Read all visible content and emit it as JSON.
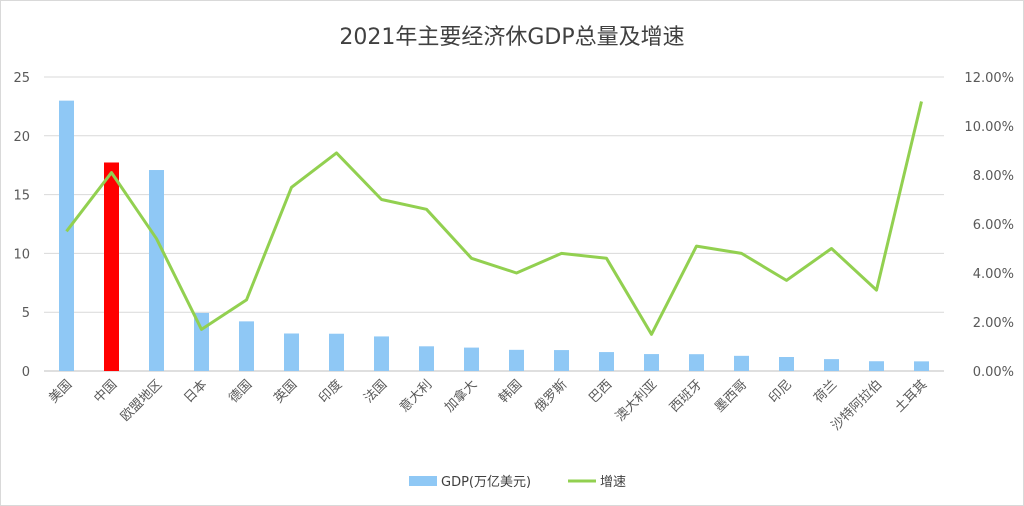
{
  "chart_data": {
    "type": "bar+line",
    "title": "2021年主要经济休GDP总量及增速",
    "categories": [
      "美国",
      "中国",
      "欧盟地区",
      "日本",
      "德国",
      "英国",
      "印度",
      "法国",
      "意大利",
      "加拿大",
      "韩国",
      "俄罗斯",
      "巴西",
      "澳大利亚",
      "西班牙",
      "墨西哥",
      "印尼",
      "荷兰",
      "沙特阿拉伯",
      "土耳其"
    ],
    "series": [
      {
        "name": "GDP(万亿美元)",
        "type": "bar",
        "axis": "left",
        "values": [
          22.99,
          17.73,
          17.09,
          4.94,
          4.22,
          3.19,
          3.17,
          2.94,
          2.1,
          1.99,
          1.8,
          1.78,
          1.61,
          1.44,
          1.43,
          1.29,
          1.19,
          1.01,
          0.83,
          0.82
        ],
        "color": "#8fc8f5",
        "highlight_color": "#ff0000",
        "highlight_index": 1
      },
      {
        "name": "增速",
        "type": "line",
        "axis": "right",
        "values": [
          5.7,
          8.1,
          5.4,
          1.7,
          2.9,
          7.5,
          8.9,
          7.0,
          6.6,
          4.6,
          4.0,
          4.8,
          4.6,
          1.5,
          5.1,
          4.8,
          3.7,
          5.0,
          3.3,
          11.0
        ],
        "color": "#92d050"
      }
    ],
    "y_left": {
      "min": 0,
      "max": 25,
      "ticks": [
        "0",
        "5",
        "10",
        "15",
        "20",
        "25"
      ]
    },
    "y_right": {
      "min": 0,
      "max": 12,
      "ticks": [
        "0.00%",
        "2.00%",
        "4.00%",
        "6.00%",
        "8.00%",
        "10.00%",
        "12.00%"
      ]
    },
    "grid": true,
    "legend": "bottom"
  }
}
